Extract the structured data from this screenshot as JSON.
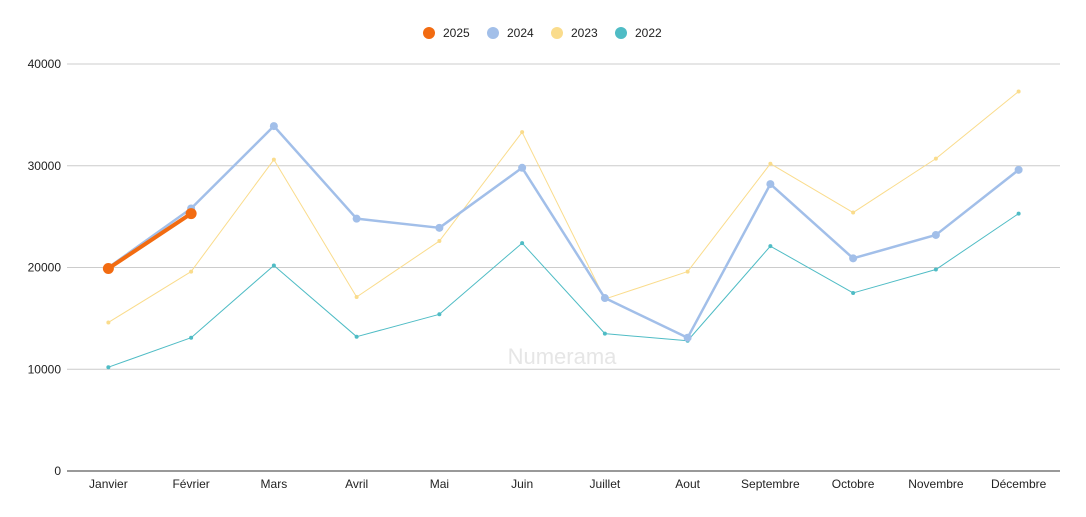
{
  "watermark": "Numerama",
  "chart_data": {
    "type": "line",
    "categories": [
      "Janvier",
      "Février",
      "Mars",
      "Avril",
      "Mai",
      "Juin",
      "Juillet",
      "Aout",
      "Septembre",
      "Octobre",
      "Novembre",
      "Décembre"
    ],
    "y_ticks": [
      "0",
      "10000",
      "20000",
      "30000",
      "40000"
    ],
    "ylim": [
      0,
      40000
    ],
    "grid": true,
    "legend_position": "top-center",
    "series": [
      {
        "name": "2025",
        "color": "#f26b11",
        "values": [
          19900,
          25300,
          null,
          null,
          null,
          null,
          null,
          null,
          null,
          null,
          null,
          null
        ]
      },
      {
        "name": "2024",
        "color": "#a2bfe9",
        "values": [
          20000,
          25800,
          33900,
          24800,
          23900,
          29800,
          17000,
          13100,
          28200,
          20900,
          23200,
          29600
        ]
      },
      {
        "name": "2023",
        "color": "#fadc8c",
        "values": [
          14600,
          19600,
          30600,
          17100,
          22600,
          33300,
          16900,
          19600,
          30200,
          25400,
          30700,
          37300
        ]
      },
      {
        "name": "2022",
        "color": "#4fbcc5",
        "values": [
          10200,
          13100,
          20200,
          13200,
          15400,
          22400,
          13500,
          12800,
          22100,
          17500,
          19800,
          25300
        ]
      }
    ]
  }
}
